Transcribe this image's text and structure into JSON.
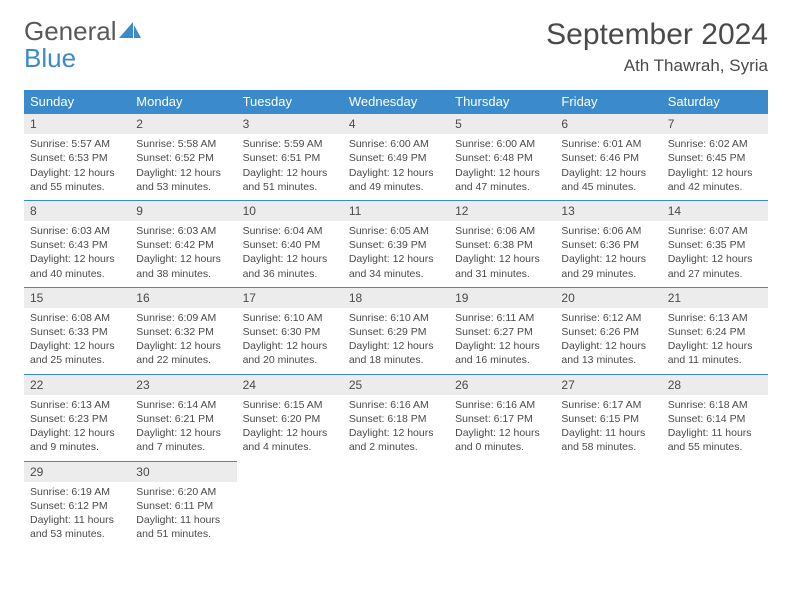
{
  "logo": {
    "word1": "General",
    "word2": "Blue"
  },
  "title": "September 2024",
  "location": "Ath Thawrah, Syria",
  "colors": {
    "header_bg": "#3b8bcc",
    "header_text": "#ffffff",
    "daynum_bg": "#ececec",
    "text": "#4a4a4a",
    "border": "#3b8bcc"
  },
  "weekdays": [
    "Sunday",
    "Monday",
    "Tuesday",
    "Wednesday",
    "Thursday",
    "Friday",
    "Saturday"
  ],
  "days": [
    {
      "n": "1",
      "sr": "5:57 AM",
      "ss": "6:53 PM",
      "dl": "12 hours and 55 minutes."
    },
    {
      "n": "2",
      "sr": "5:58 AM",
      "ss": "6:52 PM",
      "dl": "12 hours and 53 minutes."
    },
    {
      "n": "3",
      "sr": "5:59 AM",
      "ss": "6:51 PM",
      "dl": "12 hours and 51 minutes."
    },
    {
      "n": "4",
      "sr": "6:00 AM",
      "ss": "6:49 PM",
      "dl": "12 hours and 49 minutes."
    },
    {
      "n": "5",
      "sr": "6:00 AM",
      "ss": "6:48 PM",
      "dl": "12 hours and 47 minutes."
    },
    {
      "n": "6",
      "sr": "6:01 AM",
      "ss": "6:46 PM",
      "dl": "12 hours and 45 minutes."
    },
    {
      "n": "7",
      "sr": "6:02 AM",
      "ss": "6:45 PM",
      "dl": "12 hours and 42 minutes."
    },
    {
      "n": "8",
      "sr": "6:03 AM",
      "ss": "6:43 PM",
      "dl": "12 hours and 40 minutes."
    },
    {
      "n": "9",
      "sr": "6:03 AM",
      "ss": "6:42 PM",
      "dl": "12 hours and 38 minutes."
    },
    {
      "n": "10",
      "sr": "6:04 AM",
      "ss": "6:40 PM",
      "dl": "12 hours and 36 minutes."
    },
    {
      "n": "11",
      "sr": "6:05 AM",
      "ss": "6:39 PM",
      "dl": "12 hours and 34 minutes."
    },
    {
      "n": "12",
      "sr": "6:06 AM",
      "ss": "6:38 PM",
      "dl": "12 hours and 31 minutes."
    },
    {
      "n": "13",
      "sr": "6:06 AM",
      "ss": "6:36 PM",
      "dl": "12 hours and 29 minutes."
    },
    {
      "n": "14",
      "sr": "6:07 AM",
      "ss": "6:35 PM",
      "dl": "12 hours and 27 minutes."
    },
    {
      "n": "15",
      "sr": "6:08 AM",
      "ss": "6:33 PM",
      "dl": "12 hours and 25 minutes."
    },
    {
      "n": "16",
      "sr": "6:09 AM",
      "ss": "6:32 PM",
      "dl": "12 hours and 22 minutes."
    },
    {
      "n": "17",
      "sr": "6:10 AM",
      "ss": "6:30 PM",
      "dl": "12 hours and 20 minutes."
    },
    {
      "n": "18",
      "sr": "6:10 AM",
      "ss": "6:29 PM",
      "dl": "12 hours and 18 minutes."
    },
    {
      "n": "19",
      "sr": "6:11 AM",
      "ss": "6:27 PM",
      "dl": "12 hours and 16 minutes."
    },
    {
      "n": "20",
      "sr": "6:12 AM",
      "ss": "6:26 PM",
      "dl": "12 hours and 13 minutes."
    },
    {
      "n": "21",
      "sr": "6:13 AM",
      "ss": "6:24 PM",
      "dl": "12 hours and 11 minutes."
    },
    {
      "n": "22",
      "sr": "6:13 AM",
      "ss": "6:23 PM",
      "dl": "12 hours and 9 minutes."
    },
    {
      "n": "23",
      "sr": "6:14 AM",
      "ss": "6:21 PM",
      "dl": "12 hours and 7 minutes."
    },
    {
      "n": "24",
      "sr": "6:15 AM",
      "ss": "6:20 PM",
      "dl": "12 hours and 4 minutes."
    },
    {
      "n": "25",
      "sr": "6:16 AM",
      "ss": "6:18 PM",
      "dl": "12 hours and 2 minutes."
    },
    {
      "n": "26",
      "sr": "6:16 AM",
      "ss": "6:17 PM",
      "dl": "12 hours and 0 minutes."
    },
    {
      "n": "27",
      "sr": "6:17 AM",
      "ss": "6:15 PM",
      "dl": "11 hours and 58 minutes."
    },
    {
      "n": "28",
      "sr": "6:18 AM",
      "ss": "6:14 PM",
      "dl": "11 hours and 55 minutes."
    },
    {
      "n": "29",
      "sr": "6:19 AM",
      "ss": "6:12 PM",
      "dl": "11 hours and 53 minutes."
    },
    {
      "n": "30",
      "sr": "6:20 AM",
      "ss": "6:11 PM",
      "dl": "11 hours and 51 minutes."
    }
  ],
  "labels": {
    "sunrise": "Sunrise:",
    "sunset": "Sunset:",
    "daylight": "Daylight:"
  }
}
